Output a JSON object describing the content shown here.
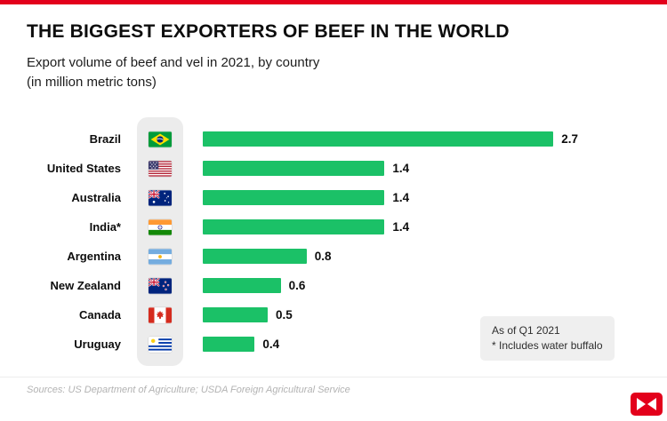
{
  "page": {
    "title": "THE BIGGEST EXPORTERS OF BEEF IN THE WORLD",
    "subtitle_line1": "Export volume of beef and vel in 2021, by country",
    "subtitle_line2": "(in million metric tons)",
    "note_line1": "As of Q1 2021",
    "note_line2": "* Includes water buffalo",
    "sources": "Sources: US Department of Agriculture; USDA Foreign Agricultural Service",
    "accent_color": "#e3001b",
    "bar_color": "#1bc167"
  },
  "chart_data": {
    "type": "bar",
    "orientation": "horizontal",
    "title": "THE BIGGEST EXPORTERS OF BEEF IN THE WORLD",
    "categories": [
      "Brazil",
      "United States",
      "Australia",
      "India*",
      "Argentina",
      "New Zealand",
      "Canada",
      "Uruguay"
    ],
    "values": [
      2.7,
      1.4,
      1.4,
      1.4,
      0.8,
      0.6,
      0.5,
      0.4
    ],
    "value_labels": [
      "2.7",
      "1.4",
      "1.4",
      "1.4",
      "0.8",
      "0.6",
      "0.5",
      "0.4"
    ],
    "flags": [
      "flag-brazil",
      "flag-united-states",
      "flag-australia",
      "flag-india",
      "flag-argentina",
      "flag-new-zealand",
      "flag-canada",
      "flag-uruguay"
    ],
    "xlabel": "",
    "ylabel": "",
    "xlim": [
      0,
      2.8
    ],
    "grid": false,
    "legend": false,
    "bar_color": "#1bc167"
  }
}
